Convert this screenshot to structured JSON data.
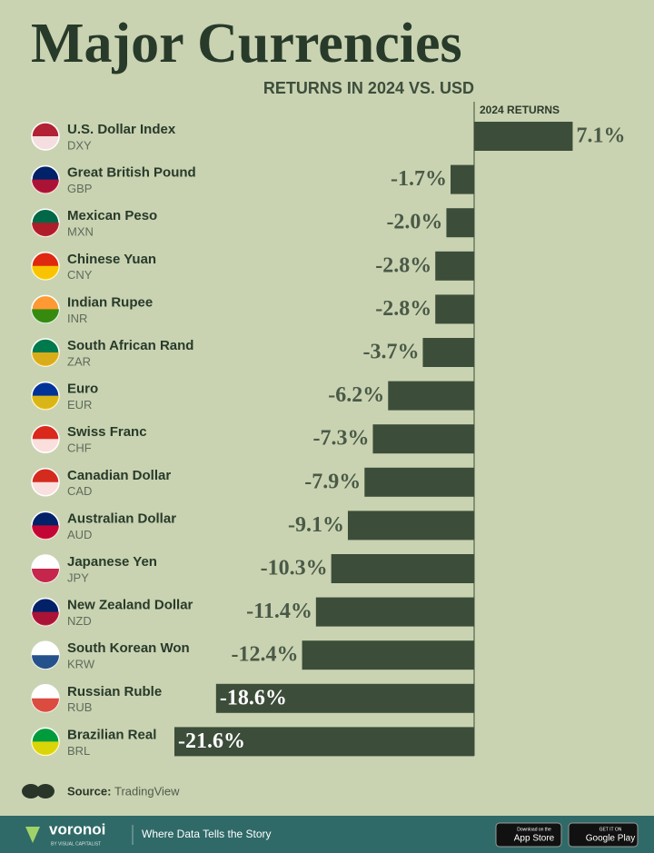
{
  "chart_data": {
    "type": "bar",
    "orientation": "horizontal",
    "title": "Major Currencies",
    "subtitle": "RETURNS IN 2024 VS. USD",
    "value_axis_label": "2024 RETURNS",
    "categories": [
      "U.S. Dollar Index",
      "Great British Pound",
      "Mexican Peso",
      "Chinese Yuan",
      "Indian Rupee",
      "South African Rand",
      "Euro",
      "Swiss Franc",
      "Canadian Dollar",
      "Australian Dollar",
      "Japanese Yen",
      "New Zealand Dollar",
      "South Korean Won",
      "Russian Ruble",
      "Brazilian Real"
    ],
    "codes": [
      "DXY",
      "GBP",
      "MXN",
      "CNY",
      "INR",
      "ZAR",
      "EUR",
      "CHF",
      "CAD",
      "AUD",
      "JPY",
      "NZD",
      "KRW",
      "RUB",
      "BRL"
    ],
    "values": [
      7.1,
      -1.7,
      -2.0,
      -2.8,
      -2.8,
      -3.7,
      -6.2,
      -7.3,
      -7.9,
      -9.1,
      -10.3,
      -11.4,
      -12.4,
      -18.6,
      -21.6
    ],
    "value_labels": [
      "7.1%",
      "-1.7%",
      "-2.0%",
      "-2.8%",
      "-2.8%",
      "-3.7%",
      "-6.2%",
      "-7.3%",
      "-7.9%",
      "-9.1%",
      "-10.3%",
      "-11.4%",
      "-12.4%",
      "-18.6%",
      "-21.6%"
    ],
    "color": "#3c4d3a",
    "source_label": "Source:",
    "source": "TradingView"
  },
  "footer": {
    "brand": "voronoi",
    "brand_sub": "BY VISUAL CAPITALIST",
    "tagline": "Where Data Tells the Story",
    "app_store_top": "Download on the",
    "app_store": "App Store",
    "google_play_top": "GET IT ON",
    "google_play": "Google Play"
  }
}
